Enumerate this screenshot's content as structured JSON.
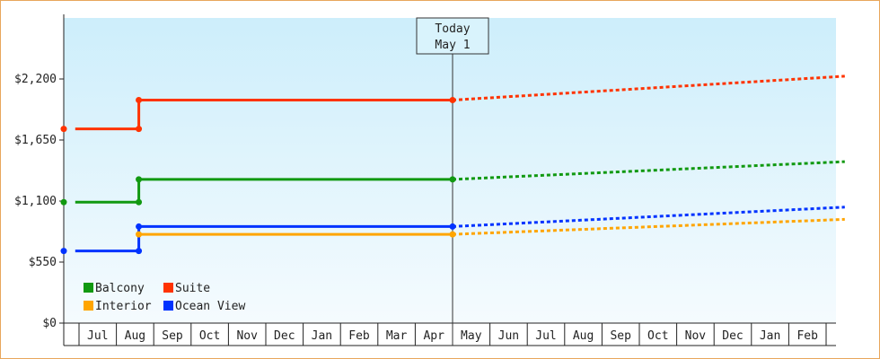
{
  "chart_data": {
    "type": "line",
    "title": "",
    "xlabel": "",
    "ylabel": "",
    "ylim": [
      0,
      2750
    ],
    "yticks": [
      0,
      550,
      1100,
      1650,
      2200
    ],
    "ytick_labels": [
      "$0",
      "$550",
      "$1,100",
      "$1,650",
      "$2,200"
    ],
    "x_months": [
      "Jul",
      "Aug",
      "Sep",
      "Oct",
      "Nov",
      "Dec",
      "Jan",
      "Feb",
      "Mar",
      "Apr",
      "May",
      "Jun",
      "Jul",
      "Aug",
      "Sep",
      "Oct",
      "Nov",
      "Dec",
      "Jan",
      "Feb"
    ],
    "x_range_months": [
      -0.1,
      20.5
    ],
    "today": {
      "label_line1": "Today",
      "label_line2": "May 1",
      "x": 10.0
    },
    "legend_position": "bottom-left",
    "grid": false,
    "background_gradient": [
      "#cdeefb",
      "#f5fbfe"
    ],
    "series": [
      {
        "name": "Suite",
        "color": "#ff3300",
        "historical": [
          [
            -0.1,
            1750
          ],
          [
            1.6,
            1750
          ],
          [
            1.6,
            2010
          ],
          [
            10.0,
            2010
          ]
        ],
        "forecast": [
          [
            10.0,
            2010
          ],
          [
            20.5,
            2225
          ]
        ]
      },
      {
        "name": "Balcony",
        "color": "#119911",
        "historical": [
          [
            -0.1,
            1090
          ],
          [
            1.6,
            1090
          ],
          [
            1.6,
            1295
          ],
          [
            10.0,
            1295
          ]
        ],
        "forecast": [
          [
            10.0,
            1295
          ],
          [
            20.5,
            1455
          ]
        ]
      },
      {
        "name": "Ocean View",
        "color": "#0033ff",
        "historical": [
          [
            -0.1,
            650
          ],
          [
            1.6,
            650
          ],
          [
            1.6,
            870
          ],
          [
            10.0,
            870
          ]
        ],
        "forecast": [
          [
            10.0,
            870
          ],
          [
            20.5,
            1045
          ]
        ]
      },
      {
        "name": "Interior",
        "color": "#ffa500",
        "historical": [
          [
            1.6,
            800
          ],
          [
            10.0,
            800
          ]
        ],
        "forecast": [
          [
            10.0,
            800
          ],
          [
            20.5,
            935
          ]
        ]
      }
    ],
    "legend": [
      {
        "name": "Balcony",
        "color": "#119911"
      },
      {
        "name": "Suite",
        "color": "#ff3300"
      },
      {
        "name": "Interior",
        "color": "#ffa500"
      },
      {
        "name": "Ocean View",
        "color": "#0033ff"
      }
    ]
  }
}
